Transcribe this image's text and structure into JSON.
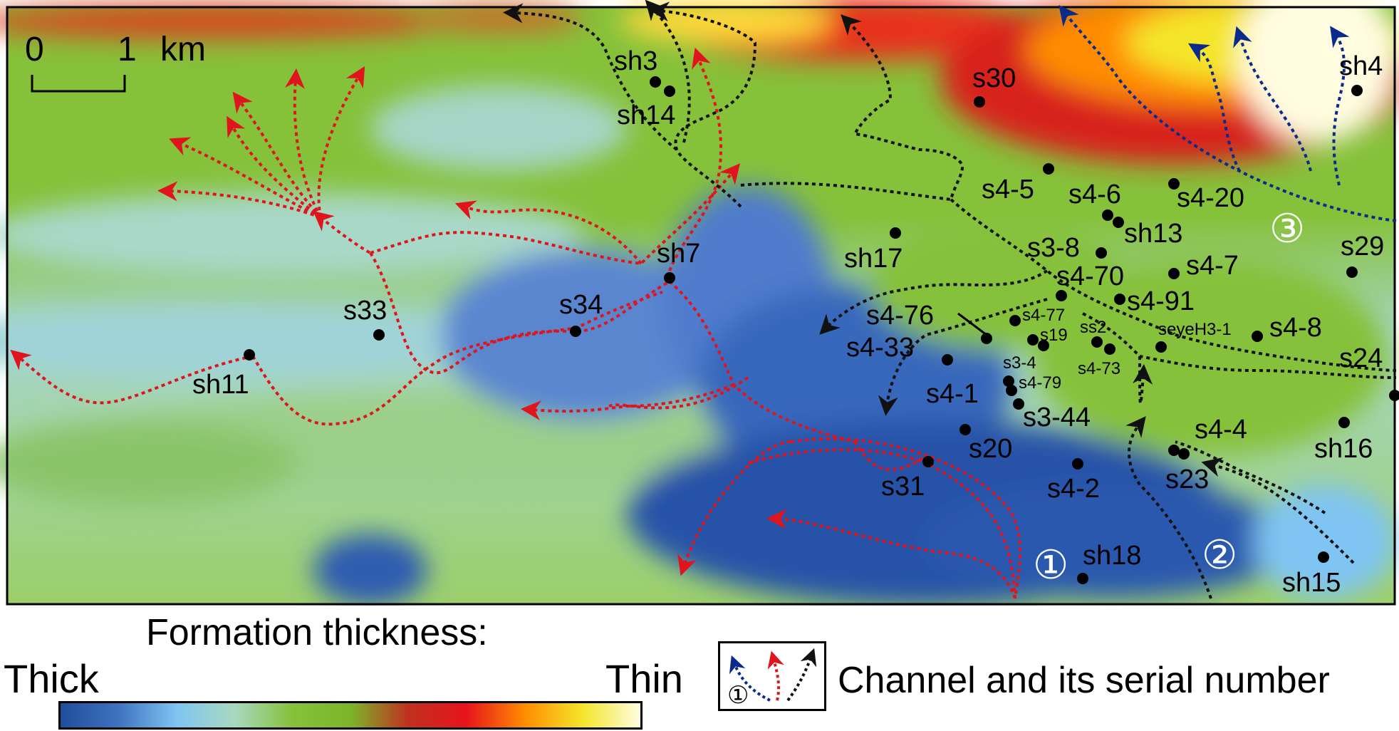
{
  "scale_bar": {
    "zero": "0",
    "one": "1",
    "unit": "km"
  },
  "wells": [
    {
      "name": "sh3",
      "label": "sh3"
    },
    {
      "name": "sh14",
      "label": "sh14"
    },
    {
      "name": "s30",
      "label": "s30"
    },
    {
      "name": "sh4",
      "label": "sh4"
    },
    {
      "name": "s4-5",
      "label": "s4-5"
    },
    {
      "name": "s4-6",
      "label": "s4-6"
    },
    {
      "name": "s4-20",
      "label": "s4-20"
    },
    {
      "name": "sh13",
      "label": "sh13"
    },
    {
      "name": "s29",
      "label": "s29"
    },
    {
      "name": "sh7",
      "label": "sh7"
    },
    {
      "name": "sh17",
      "label": "sh17"
    },
    {
      "name": "s3-8",
      "label": "s3-8"
    },
    {
      "name": "s4-7",
      "label": "s4-7"
    },
    {
      "name": "s4-70",
      "label": "s4-70"
    },
    {
      "name": "s4-91",
      "label": "s4-91"
    },
    {
      "name": "s33",
      "label": "s33"
    },
    {
      "name": "s34",
      "label": "s34"
    },
    {
      "name": "s4-76",
      "label": "s4-76"
    },
    {
      "name": "s4-77",
      "label": "s4-77"
    },
    {
      "name": "ss2",
      "label": "ss2"
    },
    {
      "name": "s19",
      "label": "s19"
    },
    {
      "name": "seyeH3-1",
      "label": "seyeH3-1"
    },
    {
      "name": "s4-8",
      "label": "s4-8"
    },
    {
      "name": "s4-33",
      "label": "s4-33"
    },
    {
      "name": "s3-4",
      "label": "s3-4"
    },
    {
      "name": "s4-73",
      "label": "s4-73"
    },
    {
      "name": "s24",
      "label": "s24"
    },
    {
      "name": "sh11",
      "label": "sh11"
    },
    {
      "name": "s4-1",
      "label": "s4-1"
    },
    {
      "name": "s4-79",
      "label": "s4-79"
    },
    {
      "name": "s3-44",
      "label": "s3-44"
    },
    {
      "name": "s4-4",
      "label": "s4-4"
    },
    {
      "name": "s20",
      "label": "s20"
    },
    {
      "name": "sh16",
      "label": "sh16"
    },
    {
      "name": "s31",
      "label": "s31"
    },
    {
      "name": "s4-2",
      "label": "s4-2"
    },
    {
      "name": "s23",
      "label": "s23"
    },
    {
      "name": "sh18",
      "label": "sh18"
    },
    {
      "name": "sh15",
      "label": "sh15"
    }
  ],
  "channel_numbers": [
    "①",
    "②",
    "③"
  ],
  "legend": {
    "thickness_title": "Formation thickness:",
    "thick": "Thick",
    "thin": "Thin",
    "channel_marker": "①",
    "channel_label": "Channel and its serial number",
    "colorbar_colors": [
      "#1f4e9c",
      "#3f72c0",
      "#7fc4f2",
      "#a8d8c0",
      "#86c13a",
      "#7cb52a",
      "#c0301f",
      "#e8141c",
      "#ff8c00",
      "#f4e52a",
      "#fffce0"
    ]
  }
}
